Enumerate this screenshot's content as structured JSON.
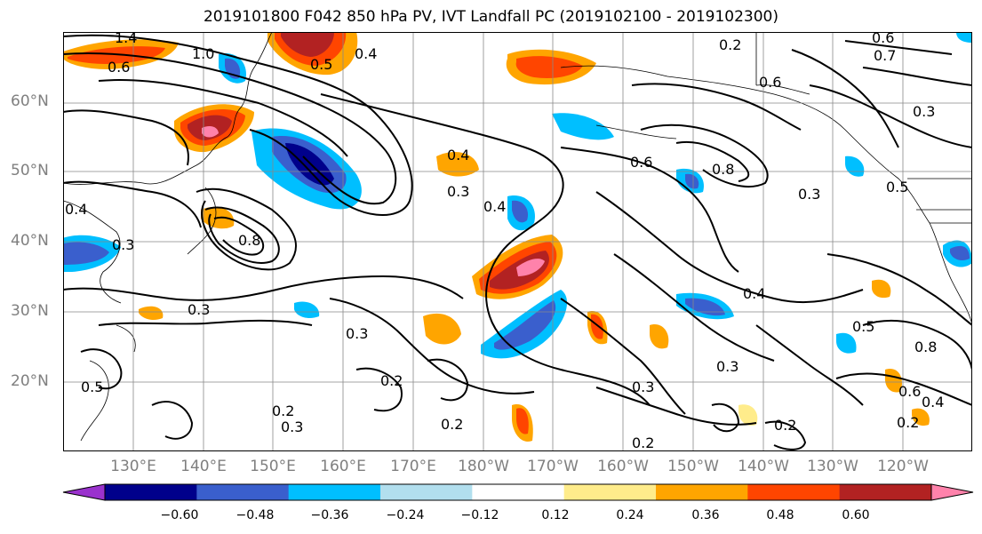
{
  "title": "2019101800 F042 850 hPa PV, IVT Landfall PC (2019102100 - 2019102300)",
  "lat_labels": [
    "60°N",
    "50°N",
    "40°N",
    "30°N",
    "20°N"
  ],
  "lon_labels": [
    "130°E",
    "140°E",
    "150°E",
    "160°E",
    "170°E",
    "180°W",
    "170°W",
    "160°W",
    "150°W",
    "140°W",
    "130°W",
    "120°W"
  ],
  "colorbar": {
    "ticks": [
      "−0.60",
      "−0.48",
      "−0.36",
      "−0.24",
      "−0.12",
      "0.12",
      "0.24",
      "0.36",
      "0.48",
      "0.60"
    ],
    "colors": [
      "#9a32cd",
      "#00008b",
      "#3a5fcd",
      "#00bfff",
      "#b2dfee",
      "#ffffff",
      "#ffec8b",
      "#ffa500",
      "#ff4500",
      "#b22222",
      "#ff82ab"
    ]
  },
  "contour_labels": [
    "1.4",
    "1.0",
    "0.5",
    "0.4",
    "0.6",
    "0.2",
    "0.6",
    "0.7",
    "0.6",
    "0.3",
    "0.4",
    "0.3",
    "0.4",
    "0.6",
    "0.8",
    "0.3",
    "0.5",
    "0.4",
    "0.8",
    "0.3",
    "0.3",
    "0.3",
    "0.4",
    "0.5",
    "0.2",
    "0.3",
    "0.3",
    "0.8",
    "0.6",
    "0.4",
    "0.2",
    "0.2",
    "0.2",
    "0.5",
    "0.2",
    "0.3",
    "0.2"
  ]
}
